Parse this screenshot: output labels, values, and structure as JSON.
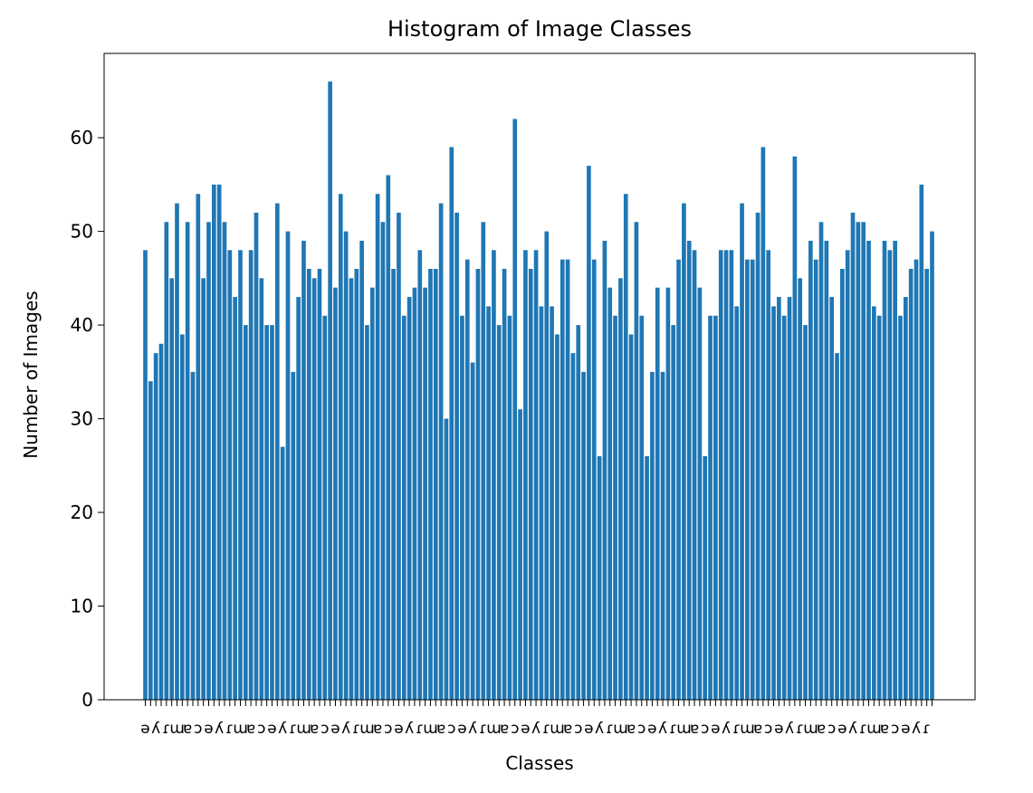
{
  "chart_data": {
    "type": "bar",
    "title": "Histogram of Image Classes",
    "xlabel": "Classes",
    "ylabel": "Number of Images",
    "ylim": [
      0,
      69
    ],
    "yticks": [
      0,
      10,
      20,
      30,
      40,
      50,
      60
    ],
    "grid": false,
    "legend": "none",
    "bar_color": "#1f77b4",
    "values": [
      48,
      34,
      37,
      38,
      51,
      45,
      53,
      39,
      51,
      35,
      54,
      45,
      51,
      55,
      55,
      51,
      48,
      43,
      48,
      40,
      48,
      52,
      45,
      40,
      40,
      53,
      27,
      50,
      35,
      43,
      49,
      46,
      45,
      46,
      41,
      66,
      44,
      54,
      50,
      45,
      46,
      49,
      40,
      44,
      54,
      51,
      56,
      46,
      52,
      41,
      43,
      44,
      48,
      44,
      46,
      46,
      53,
      30,
      59,
      52,
      41,
      47,
      36,
      46,
      51,
      42,
      48,
      40,
      46,
      41,
      62,
      31,
      48,
      46,
      48,
      42,
      50,
      42,
      39,
      47,
      47,
      37,
      40,
      35,
      57,
      47,
      26,
      49,
      44,
      41,
      45,
      54,
      39,
      51,
      41,
      26,
      35,
      44,
      35,
      44,
      40,
      47,
      53,
      49,
      48,
      44,
      26,
      41,
      41,
      48,
      48,
      48,
      42,
      53,
      47,
      47,
      52,
      59,
      48,
      42,
      43,
      41,
      43,
      58,
      45,
      40,
      49,
      47,
      51,
      49,
      43,
      37,
      46,
      48,
      52,
      51,
      51,
      49,
      42,
      41,
      49,
      48,
      49,
      41,
      43,
      46,
      47,
      55,
      46,
      50
    ]
  }
}
